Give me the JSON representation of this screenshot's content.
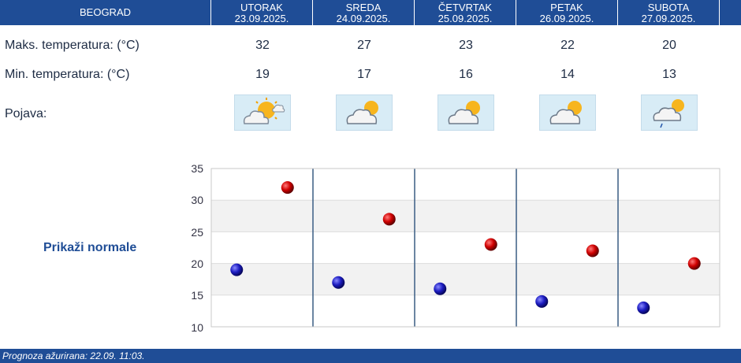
{
  "header": {
    "city": "BEOGRAD",
    "days": [
      {
        "day": "UTORAK",
        "date": "23.09.2025."
      },
      {
        "day": "SREDA",
        "date": "24.09.2025."
      },
      {
        "day": "ČETVRTAK",
        "date": "25.09.2025."
      },
      {
        "day": "PETAK",
        "date": "26.09.2025."
      },
      {
        "day": "SUBOTA",
        "date": "27.09.2025."
      }
    ]
  },
  "rows": {
    "max_label": "Maks. temperatura: (°C)",
    "min_label": "Min. temperatura: (°C)",
    "phenomenon_label": "Pojava:",
    "max_values": [
      "32",
      "27",
      "23",
      "22",
      "20"
    ],
    "min_values": [
      "19",
      "17",
      "16",
      "14",
      "13"
    ],
    "icons": [
      "sun-behind-cloud-icon",
      "partly-cloudy-icon",
      "partly-cloudy-icon",
      "partly-cloudy-icon",
      "partly-cloudy-light-rain-icon"
    ]
  },
  "normals_link": "Prikaži normale",
  "chart_data": {
    "type": "scatter",
    "categories": [
      "UTORAK",
      "SREDA",
      "ČETVRTAK",
      "PETAK",
      "SUBOTA"
    ],
    "series": [
      {
        "name": "Min. temperatura",
        "values": [
          19,
          17,
          16,
          14,
          13
        ],
        "color": "#1a1ab0"
      },
      {
        "name": "Maks. temperatura",
        "values": [
          32,
          27,
          23,
          22,
          20
        ],
        "color": "#c80000"
      }
    ],
    "ylim": [
      10,
      35
    ],
    "yticks": [
      "35",
      "30",
      "25",
      "20",
      "15",
      "10"
    ],
    "grid": true
  },
  "footer": {
    "updated": "Prognoza ažurirana:  22.09. 11:03."
  }
}
